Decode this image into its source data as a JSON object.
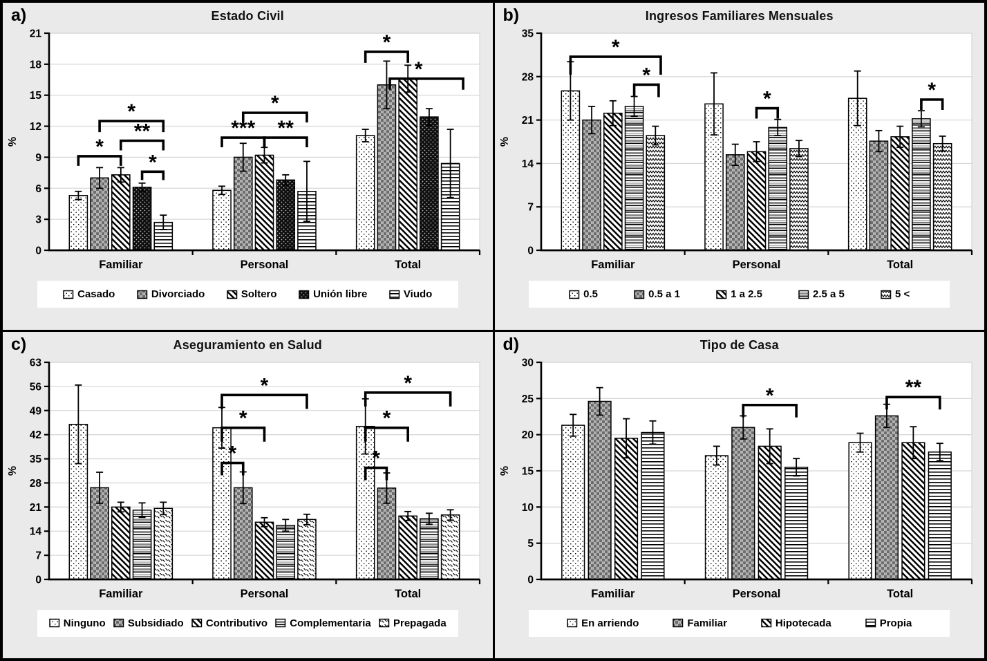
{
  "figure": {
    "background": "#eaeaea",
    "border_color": "#000000",
    "plot_bg": "#ffffff",
    "grid_color": "#d8d8d8",
    "ink": "#000000"
  },
  "chart_data": [
    {
      "id": "a",
      "letter": "a)",
      "type": "bar",
      "title": "Estado Civil",
      "ylabel": "%",
      "ylim": [
        0,
        21
      ],
      "ytick_step": 3,
      "grid": true,
      "legend_position": "bottom",
      "categories": [
        "Familiar",
        "Personal",
        "Total"
      ],
      "series": [
        {
          "name": "Casado",
          "pattern": "dots",
          "values": [
            5.3,
            5.8,
            11.1
          ],
          "errors": [
            0.4,
            0.4,
            0.6
          ]
        },
        {
          "name": "Divorciado",
          "pattern": "checker",
          "values": [
            7.0,
            9.0,
            16.0
          ],
          "errors": [
            1.0,
            1.35,
            2.3
          ]
        },
        {
          "name": "Soltero",
          "pattern": "diag",
          "values": [
            7.3,
            9.2,
            16.6
          ],
          "errors": [
            0.7,
            0.75,
            1.3
          ]
        },
        {
          "name": "Unión libre",
          "pattern": "blackdots",
          "values": [
            6.1,
            6.8,
            12.9
          ],
          "errors": [
            0.4,
            0.5,
            0.8
          ]
        },
        {
          "name": "Viudo",
          "pattern": "hlines",
          "values": [
            2.7,
            5.7,
            8.4
          ],
          "errors": [
            0.7,
            2.9,
            3.3
          ]
        }
      ],
      "significance": [
        {
          "group": 0,
          "from": 0,
          "to": 2,
          "y": 9.1,
          "label": "*",
          "drop": 14
        },
        {
          "group": 0,
          "from": 1,
          "to": 4,
          "y": 12.5,
          "label": "*",
          "drop": 16
        },
        {
          "group": 0,
          "from": 2,
          "to": 4,
          "y": 10.6,
          "label": "**",
          "drop": 14
        },
        {
          "group": 0,
          "from": 3,
          "to": 4,
          "y": 7.6,
          "label": "*",
          "drop": 12
        },
        {
          "group": 1,
          "from": 0,
          "to": 2,
          "y": 10.9,
          "label": "***",
          "drop": 14
        },
        {
          "group": 1,
          "from": 2,
          "to": 4,
          "y": 10.9,
          "label": "**",
          "drop": 14
        },
        {
          "group": 1,
          "from": 1,
          "to": 4,
          "y": 13.3,
          "label": "*",
          "drop": 14
        },
        {
          "group": 2,
          "from": 0,
          "to": 2,
          "y": 19.2,
          "label": "*",
          "drop": 16
        },
        {
          "group": 2,
          "from": 1.15,
          "to": 4.6,
          "y": 16.6,
          "label": "*",
          "drop": 16,
          "label_at": 2.5
        }
      ]
    },
    {
      "id": "b",
      "letter": "b)",
      "type": "bar",
      "title": "Ingresos Familiares Mensuales",
      "ylabel": "%",
      "ylim": [
        0,
        35
      ],
      "ytick_step": 7,
      "grid": true,
      "legend_position": "bottom",
      "categories": [
        "Familiar",
        "Personal",
        "Total"
      ],
      "series": [
        {
          "name": "0.5",
          "pattern": "dots",
          "values": [
            25.7,
            23.6,
            24.5
          ],
          "errors": [
            4.7,
            5.0,
            4.4
          ]
        },
        {
          "name": "0.5 a 1",
          "pattern": "checker",
          "values": [
            21.0,
            15.4,
            17.6
          ],
          "errors": [
            2.2,
            1.7,
            1.7
          ]
        },
        {
          "name": "1 a 2.5",
          "pattern": "diag",
          "values": [
            22.1,
            15.9,
            18.3
          ],
          "errors": [
            2.0,
            1.6,
            1.7
          ]
        },
        {
          "name": "2.5 a 5",
          "pattern": "hbands",
          "values": [
            23.2,
            19.8,
            21.2
          ],
          "errors": [
            1.6,
            1.3,
            1.3
          ]
        },
        {
          "name": "5 <",
          "pattern": "zigzag",
          "values": [
            18.5,
            16.4,
            17.2
          ],
          "errors": [
            1.5,
            1.3,
            1.2
          ]
        }
      ],
      "significance": [
        {
          "group": 0,
          "from": 0,
          "to": 4.25,
          "y": 31.2,
          "label": "*",
          "drop": 26
        },
        {
          "group": 0,
          "from": 3,
          "to": 4.15,
          "y": 26.7,
          "label": "*",
          "drop": 18
        },
        {
          "group": 1,
          "from": 2,
          "to": 3,
          "y": 22.9,
          "label": "*",
          "drop": 15
        },
        {
          "group": 2,
          "from": 3,
          "to": 4,
          "y": 24.3,
          "label": "*",
          "drop": 15
        }
      ]
    },
    {
      "id": "c",
      "letter": "c)",
      "type": "bar",
      "title": "Aseguramiento en Salud",
      "ylabel": "%",
      "ylim": [
        0,
        63
      ],
      "ytick_step": 7,
      "grid": true,
      "legend_position": "bottom",
      "categories": [
        "Familiar",
        "Personal",
        "Total"
      ],
      "series": [
        {
          "name": "Ninguno",
          "pattern": "dots",
          "values": [
            45.0,
            44.0,
            44.4
          ],
          "errors": [
            11.4,
            5.9,
            8.0
          ]
        },
        {
          "name": "Subsidiado",
          "pattern": "checker",
          "values": [
            26.6,
            26.6,
            26.5
          ],
          "errors": [
            4.5,
            4.6,
            4.4
          ]
        },
        {
          "name": "Contributivo",
          "pattern": "diag",
          "values": [
            21.0,
            16.6,
            18.4
          ],
          "errors": [
            1.4,
            1.3,
            1.3
          ]
        },
        {
          "name": "Complementaria",
          "pattern": "hbands",
          "values": [
            20.1,
            15.7,
            17.6
          ],
          "errors": [
            2.1,
            1.7,
            1.6
          ]
        },
        {
          "name": "Prepagada",
          "pattern": "diagdash",
          "values": [
            20.6,
            17.4,
            18.7
          ],
          "errors": [
            1.8,
            1.5,
            1.5
          ]
        }
      ],
      "significance": [
        {
          "group": 1,
          "from": 0,
          "to": 4,
          "y": 53.5,
          "label": "*",
          "drop": 20
        },
        {
          "group": 1,
          "from": 0,
          "to": 2,
          "y": 44.0,
          "label": "*",
          "drop": 20
        },
        {
          "group": 1,
          "from": 0,
          "to": 1,
          "y": 33.8,
          "label": "*",
          "drop": 18
        },
        {
          "group": 2,
          "from": 0,
          "to": 4,
          "y": 54.2,
          "label": "*",
          "drop": 20
        },
        {
          "group": 2,
          "from": 0,
          "to": 2,
          "y": 44.0,
          "label": "*",
          "drop": 20
        },
        {
          "group": 2,
          "from": 0,
          "to": 1,
          "y": 32.4,
          "label": "*",
          "drop": 18
        }
      ]
    },
    {
      "id": "d",
      "letter": "d)",
      "type": "bar",
      "title": "Tipo de Casa",
      "ylabel": "%",
      "ylim": [
        0,
        30
      ],
      "ytick_step": 5,
      "grid": true,
      "legend_position": "bottom",
      "categories": [
        "Familiar",
        "Personal",
        "Total"
      ],
      "series": [
        {
          "name": "En arriendo",
          "pattern": "dots",
          "values": [
            21.3,
            17.1,
            18.9
          ],
          "errors": [
            1.5,
            1.3,
            1.3
          ]
        },
        {
          "name": "Familiar",
          "pattern": "checker",
          "values": [
            24.6,
            21.0,
            22.6
          ],
          "errors": [
            1.9,
            1.6,
            1.6
          ]
        },
        {
          "name": "Hipotecada",
          "pattern": "diag",
          "values": [
            19.5,
            18.4,
            18.9
          ],
          "errors": [
            2.7,
            2.4,
            2.2
          ]
        },
        {
          "name": "Propia",
          "pattern": "hlines",
          "values": [
            20.3,
            15.5,
            17.6
          ],
          "errors": [
            1.6,
            1.2,
            1.2
          ]
        }
      ],
      "significance": [
        {
          "group": 1,
          "from": 1,
          "to": 3,
          "y": 24.1,
          "label": "*",
          "drop": 18
        },
        {
          "group": 2,
          "from": 1,
          "to": 3,
          "y": 25.2,
          "label": "**",
          "drop": 18
        }
      ]
    }
  ]
}
